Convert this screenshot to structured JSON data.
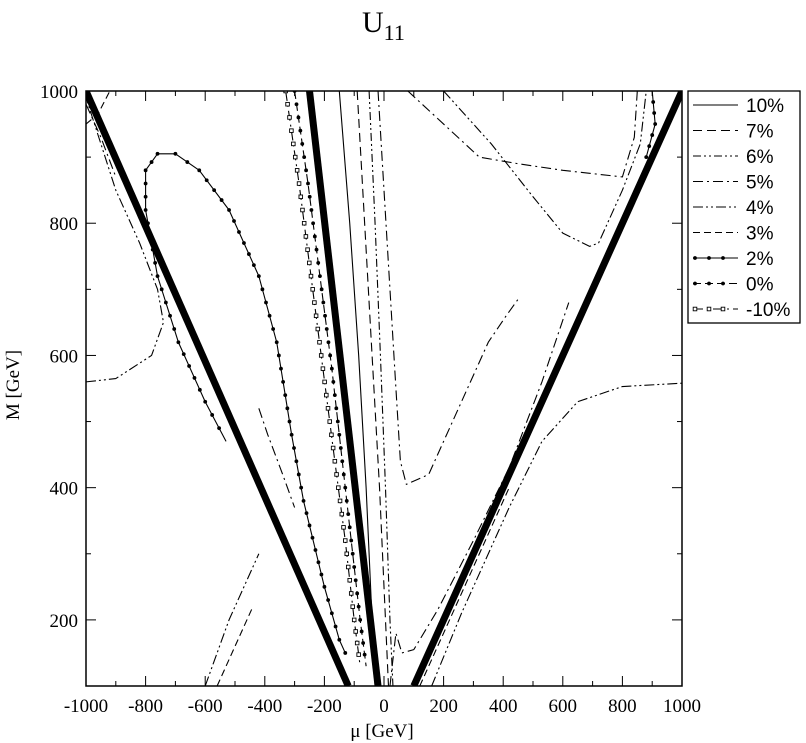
{
  "chart_data": {
    "type": "line",
    "title": "U",
    "title_sub": "11",
    "xlabel": "μ [GeV]",
    "ylabel": "M [GeV]",
    "xlim": [
      -1000,
      1000
    ],
    "ylim": [
      100,
      1000
    ],
    "xticks": [
      -1000,
      -800,
      -600,
      -400,
      -200,
      0,
      200,
      400,
      600,
      800,
      1000
    ],
    "yticks": [
      200,
      400,
      600,
      800,
      1000
    ],
    "grid": false,
    "legend_position": "top-right",
    "boundaries": [
      {
        "style": "thick-solid",
        "points": [
          [
            -1000,
            1000
          ],
          [
            -120,
            100
          ]
        ]
      },
      {
        "style": "thick-solid",
        "points": [
          [
            -250,
            1000
          ],
          [
            -20,
            100
          ]
        ]
      },
      {
        "style": "thick-solid",
        "points": [
          [
            100,
            100
          ],
          [
            1000,
            1000
          ]
        ]
      }
    ],
    "series": [
      {
        "name": "10%",
        "dash": "",
        "marker": "none",
        "segments": [
          [
            [
              -150,
              1000
            ],
            [
              -115,
              800
            ],
            [
              -85,
              600
            ],
            [
              -60,
              400
            ],
            [
              -40,
              200
            ],
            [
              -30,
              100
            ]
          ]
        ]
      },
      {
        "name": "7%",
        "dash": "9,5",
        "marker": "none",
        "segments": [
          [
            [
              -90,
              1000
            ],
            [
              -65,
              800
            ],
            [
              -40,
              600
            ],
            [
              -15,
              400
            ],
            [
              5,
              200
            ],
            [
              15,
              100
            ]
          ]
        ]
      },
      {
        "name": "6%",
        "dash": "8,3,2,3,2,3",
        "marker": "none",
        "segments": [
          [
            [
              -50,
              1000
            ],
            [
              -30,
              800
            ],
            [
              -12,
              600
            ],
            [
              5,
              400
            ],
            [
              20,
              200
            ],
            [
              30,
              100
            ]
          ]
        ]
      },
      {
        "name": "5%",
        "dash": "10,4,2,4",
        "marker": "none",
        "segments": [
          [
            [
              -1000,
              980
            ],
            [
              -950,
              930
            ],
            [
              -900,
              870
            ]
          ],
          [
            [
              -20,
              1000
            ],
            [
              0,
              850
            ],
            [
              20,
              700
            ],
            [
              40,
              550
            ],
            [
              55,
              440
            ],
            [
              75,
              405
            ],
            [
              150,
              420
            ],
            [
              250,
              520
            ],
            [
              350,
              620
            ],
            [
              410,
              660
            ],
            [
              450,
              685
            ]
          ],
          [
            [
              80,
              1000
            ],
            [
              200,
              950
            ],
            [
              320,
              900
            ],
            [
              450,
              890
            ],
            [
              600,
              880
            ],
            [
              800,
              870
            ],
            [
              840,
              930
            ],
            [
              850,
              1000
            ]
          ],
          [
            [
              -420,
              520
            ],
            [
              -390,
              480
            ],
            [
              -340,
              420
            ],
            [
              -300,
              370
            ]
          ],
          [
            [
              20,
              100
            ],
            [
              40,
              180
            ],
            [
              60,
              150
            ],
            [
              100,
              155
            ],
            [
              180,
              215
            ],
            [
              300,
              320
            ],
            [
              420,
              430
            ],
            [
              530,
              560
            ],
            [
              620,
              680
            ]
          ]
        ]
      },
      {
        "name": "4%",
        "dash": "10,3,2,3,2,3",
        "marker": "none",
        "segments": [
          [
            [
              -1000,
              560
            ],
            [
              -900,
              565
            ],
            [
              -780,
              600
            ],
            [
              -740,
              650
            ],
            [
              -760,
              700
            ],
            [
              -820,
              770
            ],
            [
              -900,
              850
            ],
            [
              -1000,
              990
            ]
          ],
          [
            [
              200,
              1000
            ],
            [
              360,
              920
            ],
            [
              500,
              840
            ],
            [
              600,
              785
            ],
            [
              690,
              765
            ],
            [
              720,
              770
            ],
            [
              800,
              850
            ],
            [
              860,
              920
            ],
            [
              880,
              1000
            ]
          ],
          [
            [
              -1000,
              1000
            ],
            [
              -960,
              950
            ]
          ],
          [
            [
              -600,
              100
            ],
            [
              -520,
              200
            ],
            [
              -420,
              300
            ]
          ],
          [
            [
              160,
              100
            ],
            [
              260,
              210
            ],
            [
              340,
              290
            ],
            [
              420,
              370
            ],
            [
              530,
              470
            ],
            [
              650,
              530
            ],
            [
              800,
              553
            ],
            [
              1000,
              558
            ]
          ]
        ]
      },
      {
        "name": "3%",
        "dash": "7,4",
        "marker": "none",
        "segments": [
          [
            [
              -1000,
              950
            ],
            [
              -960,
              965
            ],
            [
              -920,
              1000
            ]
          ],
          [
            [
              120,
              100
            ],
            [
              200,
              180
            ],
            [
              300,
              280
            ],
            [
              420,
              400
            ]
          ],
          [
            [
              -560,
              100
            ],
            [
              -520,
              140
            ],
            [
              -440,
              220
            ]
          ]
        ]
      },
      {
        "name": "2%",
        "dash": "",
        "marker": "dot",
        "segments": [
          [
            [
              -130,
              150
            ],
            [
              -150,
              170
            ],
            [
              -200,
              250
            ],
            [
              -270,
              380
            ],
            [
              -310,
              480
            ],
            [
              -360,
              620
            ],
            [
              -420,
              720
            ],
            [
              -520,
              820
            ],
            [
              -620,
              880
            ],
            [
              -700,
              905
            ],
            [
              -760,
              905
            ],
            [
              -800,
              880
            ],
            [
              -800,
              820
            ],
            [
              -760,
              720
            ],
            [
              -690,
              620
            ],
            [
              -600,
              530
            ],
            [
              -530,
              470
            ]
          ],
          [
            [
              880,
              900
            ],
            [
              910,
              950
            ],
            [
              900,
              1000
            ]
          ]
        ]
      },
      {
        "name": "0%",
        "dash": "8,4",
        "marker": "dot",
        "segments": [
          [
            [
              -300,
              1000
            ],
            [
              -255,
              860
            ],
            [
              -215,
              720
            ],
            [
              -175,
              580
            ],
            [
              -140,
              440
            ],
            [
              -110,
              320
            ],
            [
              -80,
              200
            ],
            [
              -60,
              130
            ]
          ]
        ]
      },
      {
        "name": "-10%",
        "dash": "10,4,2,4",
        "marker": "square",
        "segments": [
          [
            [
              -330,
              1000
            ],
            [
              -285,
              860
            ],
            [
              -245,
              720
            ],
            [
              -205,
              580
            ],
            [
              -165,
              440
            ],
            [
              -130,
              320
            ],
            [
              -100,
              200
            ],
            [
              -80,
              130
            ]
          ]
        ]
      }
    ]
  }
}
